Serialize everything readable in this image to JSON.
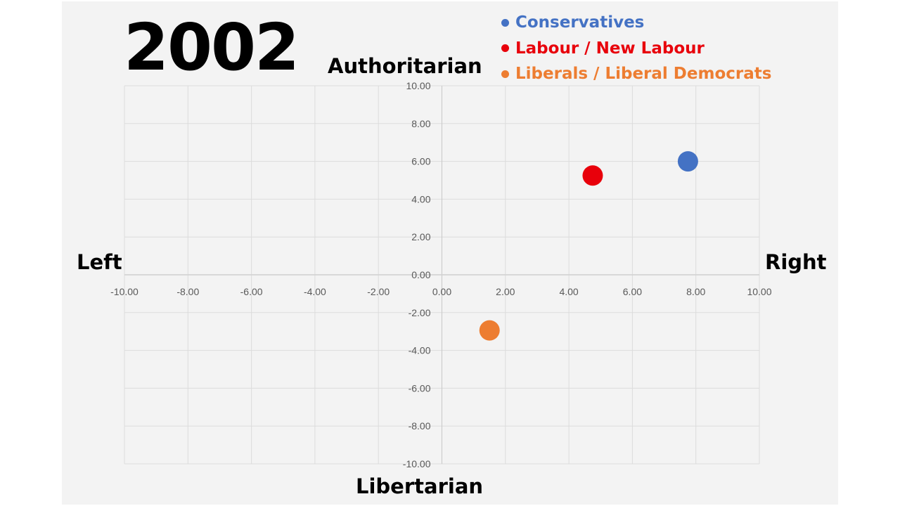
{
  "title": "2002",
  "axis_labels": {
    "top": "Authoritarian",
    "bottom": "Libertarian",
    "left": "Left",
    "right": "Right"
  },
  "legend": [
    {
      "label": "Conservatives",
      "color": "#4472c4"
    },
    {
      "label": "Labour / New Labour",
      "color": "#e8000b"
    },
    {
      "label": "Liberals / Liberal Democrats",
      "color": "#ed7d31"
    }
  ],
  "chart_data": {
    "type": "scatter",
    "title": "2002",
    "xlabel": "Left / Right",
    "ylabel": "Libertarian / Authoritarian",
    "xlim": [
      -10,
      10
    ],
    "ylim": [
      -10,
      10
    ],
    "grid": true,
    "legend_position": "top-right",
    "x_ticks": [
      "-10.00",
      "-8.00",
      "-6.00",
      "-4.00",
      "-2.00",
      "0.00",
      "2.00",
      "4.00",
      "6.00",
      "8.00",
      "10.00"
    ],
    "y_ticks": [
      "10.00",
      "8.00",
      "6.00",
      "4.00",
      "2.00",
      "0.00",
      "-2.00",
      "-4.00",
      "-6.00",
      "-8.00",
      "-10.00"
    ],
    "series": [
      {
        "name": "Conservatives",
        "color": "#4472c4",
        "points": [
          {
            "x": 7.75,
            "y": 6.0
          }
        ]
      },
      {
        "name": "Labour / New Labour",
        "color": "#e8000b",
        "points": [
          {
            "x": 4.75,
            "y": 5.25
          }
        ]
      },
      {
        "name": "Liberals / Liberal Democrats",
        "color": "#ed7d31",
        "points": [
          {
            "x": 1.5,
            "y": -2.94
          }
        ]
      }
    ]
  }
}
